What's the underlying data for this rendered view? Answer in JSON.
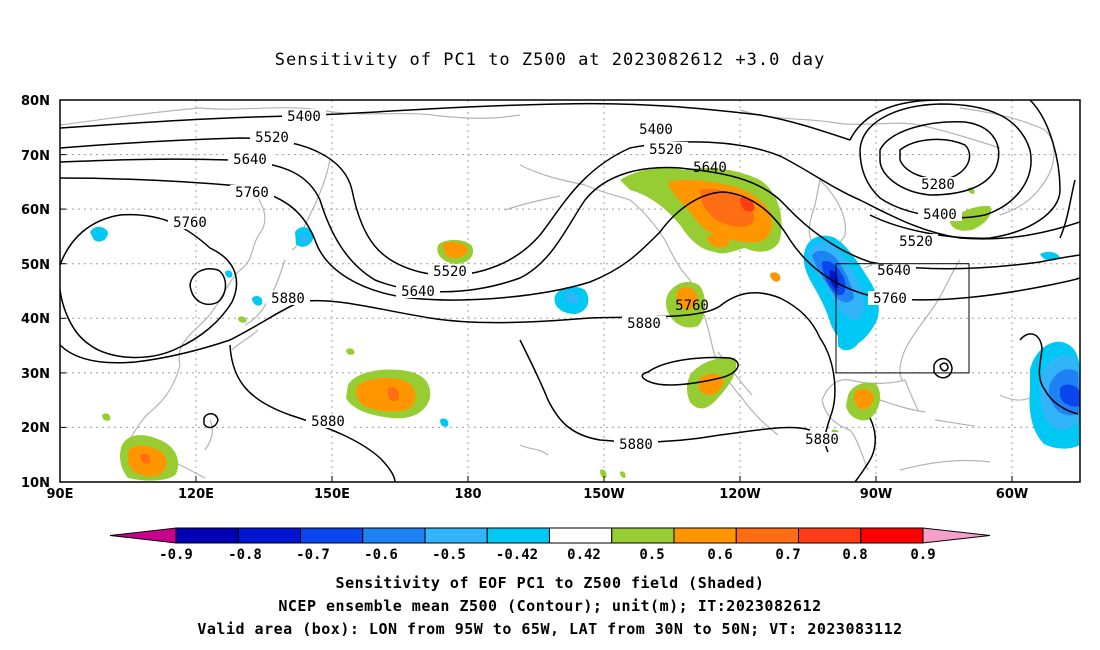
{
  "title": "Sensitivity of PC1 to Z500 at 2023082612 +3.0 day",
  "lat_labels": [
    "80N",
    "70N",
    "60N",
    "50N",
    "40N",
    "30N",
    "20N",
    "10N"
  ],
  "lon_labels": [
    "90E",
    "120E",
    "150E",
    "180",
    "150W",
    "120W",
    "90W",
    "60W"
  ],
  "contour_labels": [
    "5400",
    "5520",
    "5640",
    "5760",
    "5760",
    "5880",
    "5880",
    "5880",
    "5880",
    "5520",
    "5640",
    "5400",
    "5520",
    "5640",
    "5760",
    "5280",
    "5400",
    "5520",
    "5640",
    "5760",
    "5880"
  ],
  "colorbar": {
    "labels": [
      "-0.9",
      "-0.8",
      "-0.7",
      "-0.6",
      "-0.5",
      "-0.42",
      "0.42",
      "0.5",
      "0.6",
      "0.7",
      "0.8",
      "0.9"
    ],
    "colors": [
      "#c8008c",
      "#0000b4",
      "#0014d2",
      "#0a46ee",
      "#1e82f5",
      "#32b4fa",
      "#00c8f5",
      "#ffffff",
      "#96cd32",
      "#ff9600",
      "#ff6e14",
      "#ff3c14",
      "#ff0000",
      "#f5a0c8"
    ]
  },
  "valid_box": {
    "lon": "95W to 65W",
    "lat": "30N to 50N"
  },
  "captions": [
    "Sensitivity of EOF PC1 to Z500 field (Shaded)",
    "NCEP ensemble mean Z500 (Contour); unit(m); IT:2023082612",
    "Valid area (box): LON from 95W to 65W, LAT from 30N to 50N; VT: 2023083112"
  ]
}
